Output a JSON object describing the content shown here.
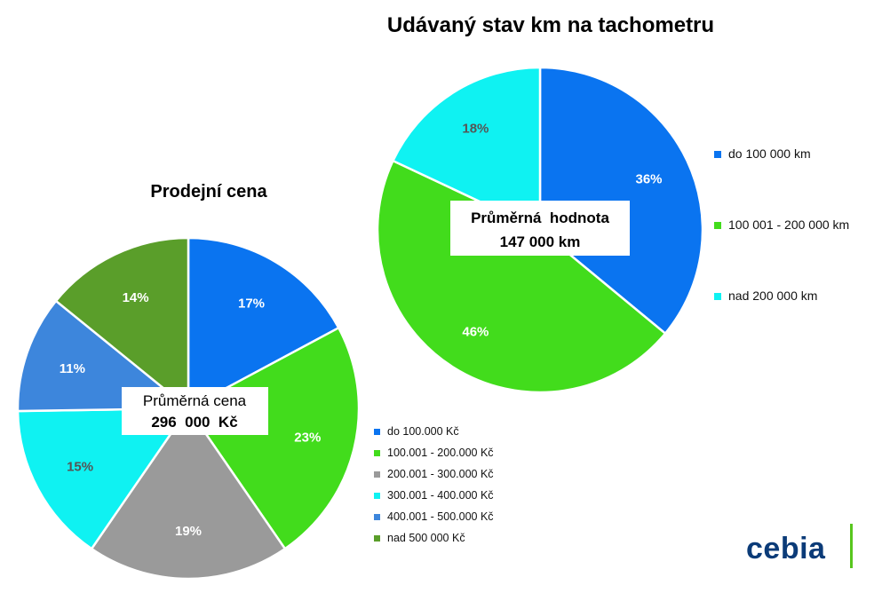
{
  "chart_data": [
    {
      "type": "pie",
      "title": "Prodejní cena",
      "categories": [
        "do 100.000 Kč",
        "100.001 - 200.000 Kč",
        "200.001 - 300.000 Kč",
        "300.001 - 400.000 Kč",
        "400.001 - 500.000 Kč",
        "nad 500 000 Kč"
      ],
      "values": [
        17,
        23,
        19,
        15,
        11,
        14
      ],
      "value_labels": [
        "17%",
        "23%",
        "19%",
        "15%",
        "11%",
        "14%"
      ],
      "colors": [
        "#0a74f0",
        "#42dc1c",
        "#9a9a9a",
        "#0ff2f2",
        "#3d86dc",
        "#5a9e2a"
      ],
      "label_colors": [
        "#ffffff",
        "#ffffff",
        "#ffffff",
        "#555555",
        "#ffffff",
        "#ffffff"
      ],
      "center_label": {
        "line1": "Průměrná cena",
        "line2": "296  000  Kč"
      },
      "legend_position": "bottom-right"
    },
    {
      "type": "pie",
      "title": "Udávaný stav km na tachometru",
      "categories": [
        "do 100 000 km",
        "100 001 - 200 000 km",
        "nad 200 000 km"
      ],
      "values": [
        36,
        46,
        18
      ],
      "value_labels": [
        "36%",
        "46%",
        "18%"
      ],
      "colors": [
        "#0a74f0",
        "#42dc1c",
        "#0ff2f2"
      ],
      "label_colors": [
        "#ffffff",
        "#ffffff",
        "#555555"
      ],
      "center_label": {
        "line1": "Průměrná  hodnota",
        "line2": "147 000 km"
      },
      "legend_position": "right"
    }
  ],
  "logo": {
    "text": "cebia",
    "color": "#0b3b78",
    "accent": "#58c61e"
  }
}
